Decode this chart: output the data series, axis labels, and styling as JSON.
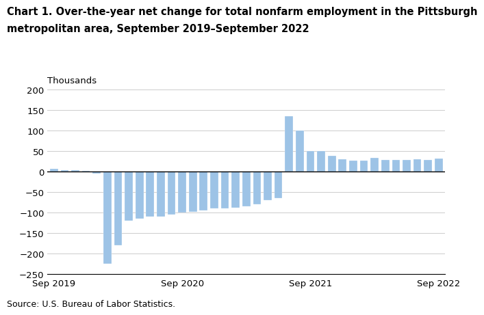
{
  "title_line1": "Chart 1. Over-the-year net change for total nonfarm employment in the Pittsburgh",
  "title_line2": "metropolitan area, September 2019–September 2022",
  "ylabel": "Thousands",
  "source": "Source: U.S. Bureau of Labor Statistics.",
  "bar_color": "#9dc3e6",
  "ylim": [
    -250,
    200
  ],
  "yticks": [
    -250,
    -200,
    -150,
    -100,
    -50,
    0,
    50,
    100,
    150,
    200
  ],
  "xtick_labels": [
    "Sep 2019",
    "Sep 2020",
    "Sep 2021",
    "Sep 2022"
  ],
  "sep_indices": [
    0,
    12,
    24,
    36
  ],
  "values": [
    7,
    4,
    4,
    2,
    -5,
    -225,
    -180,
    -120,
    -115,
    -110,
    -110,
    -105,
    -100,
    -98,
    -95,
    -90,
    -90,
    -88,
    -85,
    -80,
    -70,
    -65,
    135,
    100,
    50,
    50,
    38,
    30,
    27,
    27,
    33,
    28,
    28,
    28,
    30,
    29,
    32
  ],
  "background_color": "#ffffff",
  "grid_color": "#cccccc",
  "title_fontsize": 10.5,
  "axis_fontsize": 9.5,
  "source_fontsize": 9
}
